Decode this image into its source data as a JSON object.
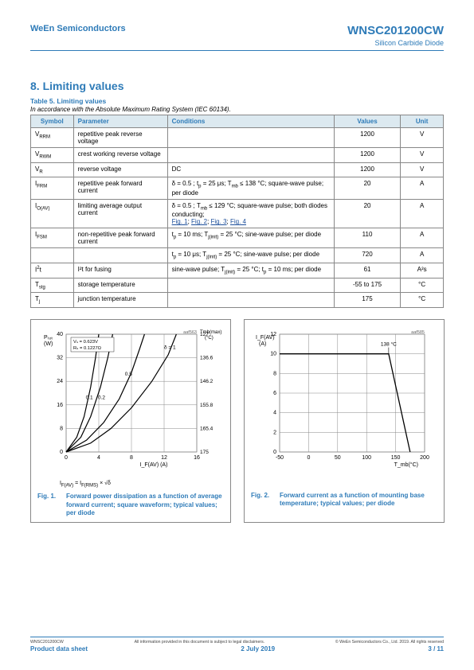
{
  "header": {
    "company": "WeEn Semiconductors",
    "partno": "WNSC201200CW",
    "subtitle": "Silicon Carbide Diode"
  },
  "section": {
    "num_title": "8. Limiting values"
  },
  "table": {
    "title": "Table 5. Limiting values",
    "sub": "In accordance with the Absolute Maximum Rating System (IEC 60134).",
    "head": {
      "symbol": "Symbol",
      "param": "Parameter",
      "cond": "Conditions",
      "values": "Values",
      "unit": "Unit"
    },
    "rows": [
      {
        "sym_html": "V<sub>RRM</sub>",
        "param": "repetitive peak reverse voltage",
        "cond_html": "",
        "val": "1200",
        "unit": "V"
      },
      {
        "sym_html": "V<sub>RWM</sub>",
        "param": "crest working reverse voltage",
        "cond_html": "",
        "val": "1200",
        "unit": "V"
      },
      {
        "sym_html": "V<sub>R</sub>",
        "param": "reverse voltage",
        "cond_html": "DC",
        "val": "1200",
        "unit": "V"
      },
      {
        "sym_html": "I<sub>FRM</sub>",
        "param": "repetitive peak forward current",
        "cond_html": "δ = 0.5 ; t<sub>p</sub> = 25 μs; T<sub>mb</sub> ≤ 138 °C; square-wave pulse; per diode",
        "val": "20",
        "unit": "A"
      },
      {
        "sym_html": "I<sub>O(AV)</sub>",
        "param": "limiting average output current",
        "cond_html": "δ = 0.5 ; T<sub>mb</sub> ≤ 129 °C; square-wave pulse; both diodes conducting;<br><span class='lnk'>Fig. 1</span>; <span class='lnk'>Fig. 2</span>; <span class='lnk'>Fig. 3</span>; <span class='lnk'>Fig. 4</span>",
        "val": "20",
        "unit": "A"
      },
      {
        "sym_html": "I<sub>FSM</sub>",
        "param": "non-repetitive peak forward current",
        "cond_html": "t<sub>p</sub> = 10 ms; T<sub>j(init)</sub> = 25 °C; sine-wave pulse; per diode",
        "val": "110",
        "unit": "A"
      },
      {
        "sym_html": "",
        "param": "",
        "cond_html": "t<sub>p</sub> = 10 μs; T<sub>j(init)</sub> = 25 °C; sine-wave pulse; per diode",
        "val": "720",
        "unit": "A"
      },
      {
        "sym_html": "I<sup>2</sup>t",
        "param": "I²t for fusing",
        "cond_html": "sine-wave pulse; T<sub>j(init)</sub> = 25 °C; t<sub>p</sub> = 10 ms; per diode",
        "val": "61",
        "unit": "A²s"
      },
      {
        "sym_html": "T<sub>stg</sub>",
        "param": "storage temperature",
        "cond_html": "",
        "val": "-55 to 175",
        "unit": "°C"
      },
      {
        "sym_html": "T<sub>j</sub>",
        "param": "junction temperature",
        "cond_html": "",
        "val": "175",
        "unit": "°C"
      }
    ]
  },
  "fig1": {
    "tag": "aaf563",
    "ylabel": "Pₜₒₜ\n(W)",
    "xlabel": "I_F(AV) (A)",
    "rlabel": "T_mb(max)\n(°C)",
    "note": "I_F(AV) = I_F(RMS) × √δ",
    "xlim": [
      0,
      16
    ],
    "xtick_step": 4,
    "ylim": [
      0,
      40
    ],
    "ytick_step": 8,
    "rvals": [
      127,
      136.6,
      146.2,
      155.8,
      165.4,
      175
    ],
    "box_color": "#888",
    "grid_color": "#888",
    "annot": "V_S = 0.623V\nR_S = 0.1227Ω",
    "curves": {
      "d01": {
        "label": "0.1",
        "pts": [
          [
            0,
            0
          ],
          [
            1.3,
            5
          ],
          [
            2.2,
            12
          ],
          [
            3.0,
            22
          ],
          [
            3.6,
            32
          ],
          [
            4.0,
            40
          ]
        ]
      },
      "d02": {
        "label": "0.2",
        "pts": [
          [
            0,
            0
          ],
          [
            1.8,
            5
          ],
          [
            3.0,
            12
          ],
          [
            4.2,
            22
          ],
          [
            5.1,
            32
          ],
          [
            5.7,
            40
          ]
        ]
      },
      "d05": {
        "label": "0.5",
        "pts": [
          [
            0,
            0
          ],
          [
            2.5,
            4
          ],
          [
            4.6,
            10
          ],
          [
            6.5,
            18
          ],
          [
            8.0,
            27
          ],
          [
            9.0,
            35
          ],
          [
            9.6,
            40
          ]
        ]
      },
      "d1": {
        "label": "δ = 1",
        "pts": [
          [
            0,
            0
          ],
          [
            3.0,
            3
          ],
          [
            5.5,
            8
          ],
          [
            8.0,
            15
          ],
          [
            10.5,
            24
          ],
          [
            12.5,
            33
          ],
          [
            13.5,
            40
          ]
        ]
      }
    },
    "caption_n": "Fig. 1.",
    "caption_t": "Forward power dissipation as a function of average forward current; square waveform; typical values; per diode"
  },
  "fig2": {
    "tag": "aaf585",
    "ylabel": "I_F(AV)\n(A)",
    "xlabel": "T_mb(°C)",
    "xlim": [
      -50,
      200
    ],
    "xtick_step": 50,
    "ylim": [
      0,
      12
    ],
    "ytick_step": 2,
    "box_color": "#888",
    "grid_color": "#888",
    "knee_label": "138 °C",
    "curve": [
      [
        -50,
        10
      ],
      [
        138,
        10
      ],
      [
        175,
        0
      ]
    ],
    "caption_n": "Fig. 2.",
    "caption_t": "Forward current as a function of mounting base temperature; typical values; per diode"
  },
  "footer": {
    "left_small": "WNSC201200CW",
    "mid_small": "All information provided in this document is subject to legal disclaimers.",
    "right_small": "© WeEn Semiconductors Co., Ltd. 2019. All rights reserved",
    "left": "Product data sheet",
    "mid": "2 July 2019",
    "right": "3 / 11"
  }
}
